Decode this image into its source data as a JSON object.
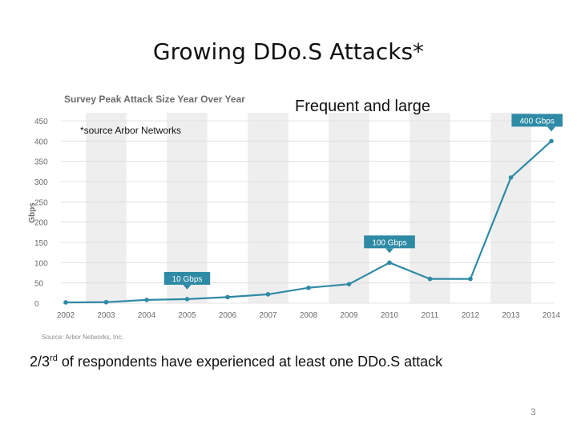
{
  "slide": {
    "title": "Growing DDo.S Attacks*",
    "subtitle": "Frequent and large",
    "source_note": "*source Arbor Networks",
    "footnote_pre": "2/3",
    "footnote_sup": "rd",
    "footnote_post": " of respondents have experienced at least one DDo.S attack",
    "page_number": "3"
  },
  "chart_data": {
    "type": "line",
    "title": "Survey Peak Attack Size Year Over Year",
    "ylabel": "Gbps",
    "xlabel": "",
    "source": "Source: Arbor Networks, Inc.",
    "x": [
      "2002",
      "2003",
      "2004",
      "2005",
      "2006",
      "2007",
      "2008",
      "2009",
      "2010",
      "2011",
      "2012",
      "2013",
      "2014"
    ],
    "values": [
      2,
      2.5,
      8,
      10,
      15,
      22,
      38,
      47,
      100,
      60,
      60,
      310,
      400
    ],
    "ylim": [
      0,
      450
    ],
    "yticks": [
      "0",
      "50",
      "100",
      "150",
      "200",
      "250",
      "300",
      "350",
      "400",
      "450"
    ],
    "grid": true,
    "line_color": "#2e8aa5",
    "band_color": "#eeeeee",
    "annotations": [
      {
        "text": "10 Gbps",
        "year": "2005",
        "value": 10
      },
      {
        "text": "100 Gbps",
        "year": "2010",
        "value": 100
      },
      {
        "text": "400 Gbps",
        "year": "2014",
        "value": 400
      }
    ]
  }
}
